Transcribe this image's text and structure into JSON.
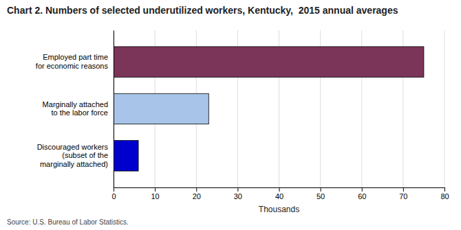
{
  "chart_data": {
    "type": "bar",
    "orientation": "horizontal",
    "title": "Chart 2. Numbers of selected underutilized workers, Kentucky,  2015 annual averages",
    "categories": [
      "Discouraged workers\n(subset of the\nmarginally attached)",
      "Marginally attached\nto the labor force",
      "Employed part time\nfor economic reasons"
    ],
    "values": [
      6,
      23,
      75
    ],
    "colors": [
      "#0000cc",
      "#a8c4e8",
      "#7b3558"
    ],
    "xlabel": "Thousands",
    "xlim": [
      0,
      80
    ],
    "xticks": [
      0,
      10,
      20,
      30,
      40,
      50,
      60,
      70,
      80
    ],
    "grid": true,
    "annotations": [
      "Source: U.S. Bureau of Labor Statistics."
    ]
  }
}
